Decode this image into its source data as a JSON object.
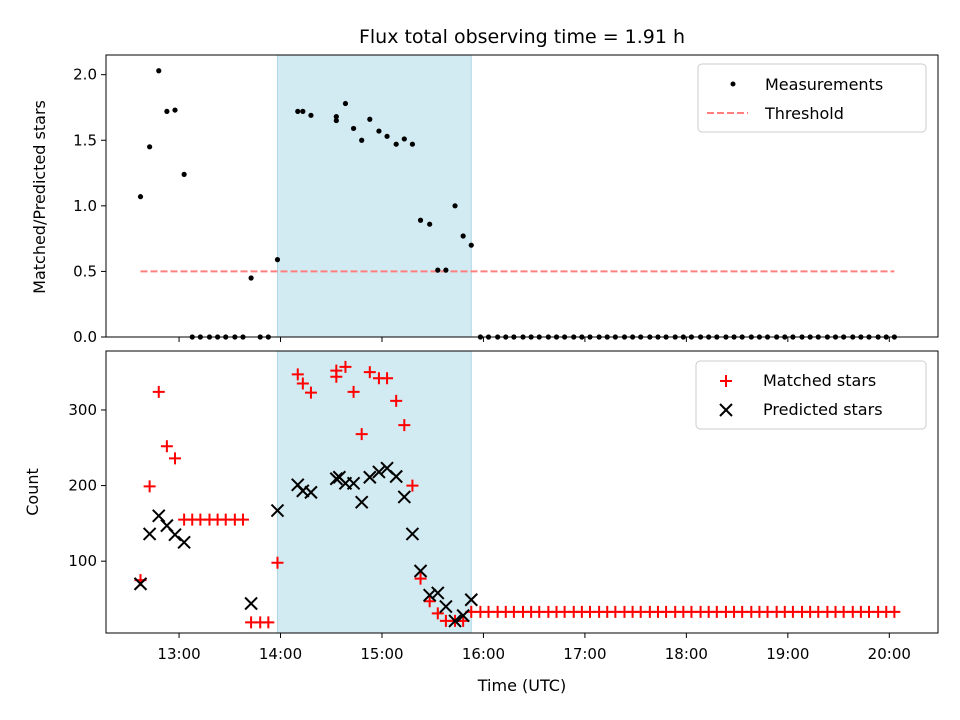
{
  "title": "Flux total observing time = 1.91 h",
  "colors": {
    "measurement": "#000000",
    "threshold": "#ff7f7f",
    "matched": "#ff0000",
    "predicted": "#000000",
    "span": "#add8e6"
  },
  "chart_data": [
    {
      "type": "scatter",
      "ylabel": "Matched/Predicted stars",
      "xlabel": "",
      "ylim": [
        0,
        2.15
      ],
      "yticks": [
        0.0,
        0.5,
        1.0,
        1.5,
        2.0
      ],
      "ytick_labels": [
        "0.0",
        "0.5",
        "1.0",
        "1.5",
        "2.0"
      ],
      "xticks_shown": false,
      "legend": {
        "placement": "top-right",
        "entries": [
          "Measurements",
          "Threshold"
        ]
      },
      "observing_span_hours": [
        13.97,
        15.88
      ],
      "threshold": {
        "value": 0.5,
        "x_start": 12.62,
        "x_end": 20.05
      },
      "series": [
        {
          "name": "Measurements",
          "x": [
            12.62,
            12.71,
            12.8,
            12.88,
            12.96,
            13.05,
            13.13,
            13.21,
            13.3,
            13.38,
            13.46,
            13.55,
            13.63,
            13.71,
            13.8,
            13.88,
            13.97,
            14.05,
            14.17,
            14.22,
            14.3,
            14.38,
            14.55,
            14.55,
            14.64,
            14.72,
            14.8,
            14.88,
            14.97,
            15.05,
            15.14,
            15.22,
            15.3,
            15.38,
            15.47,
            15.55,
            15.63,
            15.72,
            15.8,
            15.88,
            15.97,
            16.05,
            16.14,
            16.22,
            16.3,
            16.39,
            16.47,
            16.55,
            16.64,
            16.72,
            16.8,
            16.89,
            16.97,
            17.05,
            17.14,
            17.22,
            17.3,
            17.39,
            17.47,
            17.55,
            17.64,
            17.72,
            17.8,
            17.89,
            17.97,
            18.05,
            18.14,
            18.22,
            18.3,
            18.39,
            18.47,
            18.55,
            18.64,
            18.72,
            18.8,
            18.89,
            18.97,
            19.05,
            19.14,
            19.22,
            19.3,
            19.39,
            19.47,
            19.55,
            19.64,
            19.72,
            19.8,
            19.89,
            19.97,
            20.05
          ],
          "y": [
            1.07,
            1.45,
            2.03,
            1.72,
            1.73,
            1.24,
            0,
            0,
            0,
            0,
            0,
            0,
            0,
            0.45,
            0,
            0,
            0.59,
            null,
            1.72,
            1.72,
            1.69,
            null,
            1.68,
            1.65,
            1.78,
            1.59,
            1.5,
            1.66,
            1.57,
            1.53,
            1.47,
            1.51,
            1.47,
            0.89,
            0.86,
            0.51,
            0.51,
            1.0,
            0.77,
            0.7,
            0,
            0,
            0,
            0,
            0,
            0,
            0,
            0,
            0,
            0,
            0,
            0,
            0,
            0,
            0,
            0,
            0,
            0,
            0,
            0,
            0,
            0,
            0,
            0,
            0,
            0,
            0,
            0,
            0,
            0,
            0,
            0,
            0,
            0,
            0,
            0,
            0,
            0,
            0,
            0,
            0,
            0,
            0,
            0,
            0,
            0,
            0,
            0,
            0,
            0
          ]
        },
        {
          "name": "Threshold",
          "x": [
            12.62,
            20.05
          ],
          "y": [
            0.5,
            0.5
          ]
        }
      ]
    },
    {
      "type": "scatter",
      "ylabel": "Count",
      "xlabel": "Time (UTC)",
      "ylim": [
        5,
        378
      ],
      "yticks": [
        100,
        200,
        300
      ],
      "ytick_labels": [
        "100",
        "200",
        "300"
      ],
      "xlim_hours": [
        12.28,
        20.48
      ],
      "xticks_hours": [
        13,
        14,
        15,
        16,
        17,
        18,
        19,
        20
      ],
      "xtick_labels": [
        "13:00",
        "14:00",
        "15:00",
        "16:00",
        "17:00",
        "18:00",
        "19:00",
        "20:00"
      ],
      "legend": {
        "placement": "top-right",
        "entries": [
          "Matched stars",
          "Predicted stars"
        ]
      },
      "observing_span_hours": [
        13.97,
        15.88
      ],
      "series": [
        {
          "name": "Matched stars",
          "x": [
            12.62,
            12.71,
            12.8,
            12.88,
            12.96,
            13.05,
            13.13,
            13.21,
            13.3,
            13.38,
            13.46,
            13.55,
            13.63,
            13.71,
            13.8,
            13.88,
            13.97,
            14.17,
            14.22,
            14.3,
            14.55,
            14.55,
            14.64,
            14.72,
            14.8,
            14.88,
            14.97,
            15.05,
            15.14,
            15.22,
            15.3,
            15.38,
            15.47,
            15.55,
            15.63,
            15.72,
            15.8,
            15.88,
            15.97,
            16.05,
            16.14,
            16.22,
            16.3,
            16.39,
            16.47,
            16.55,
            16.64,
            16.72,
            16.8,
            16.89,
            16.97,
            17.05,
            17.14,
            17.22,
            17.3,
            17.39,
            17.47,
            17.55,
            17.64,
            17.72,
            17.8,
            17.89,
            17.97,
            18.05,
            18.14,
            18.22,
            18.3,
            18.39,
            18.47,
            18.55,
            18.64,
            18.72,
            18.8,
            18.89,
            18.97,
            19.05,
            19.14,
            19.22,
            19.3,
            19.39,
            19.47,
            19.55,
            19.64,
            19.72,
            19.8,
            19.89,
            19.97,
            20.05
          ],
          "y": [
            75,
            199,
            324,
            252,
            236,
            155,
            155,
            155,
            155,
            155,
            155,
            155,
            155,
            19,
            19,
            19,
            98,
            347,
            335,
            323,
            352,
            344,
            357,
            324,
            268,
            350,
            342,
            342,
            312,
            280,
            200,
            77,
            47,
            31,
            21,
            21,
            21,
            33,
            33,
            33,
            33,
            33,
            33,
            33,
            33,
            33,
            33,
            33,
            33,
            33,
            33,
            33,
            33,
            33,
            33,
            33,
            33,
            33,
            33,
            33,
            33,
            33,
            33,
            33,
            33,
            33,
            33,
            33,
            33,
            33,
            33,
            33,
            33,
            33,
            33,
            33,
            33,
            33,
            33,
            33,
            33,
            33,
            33,
            33,
            33,
            33,
            33,
            33
          ]
        },
        {
          "name": "Predicted stars",
          "x": [
            12.62,
            12.71,
            12.8,
            12.88,
            12.96,
            13.05,
            13.71,
            13.97,
            14.17,
            14.22,
            14.3,
            14.55,
            14.58,
            14.64,
            14.72,
            14.8,
            14.88,
            14.97,
            15.05,
            15.14,
            15.22,
            15.3,
            15.38,
            15.47,
            15.55,
            15.63,
            15.72,
            15.8,
            15.88
          ],
          "y": [
            70,
            136,
            160,
            147,
            135,
            125,
            44,
            167,
            201,
            193,
            191,
            209,
            211,
            203,
            203,
            178,
            211,
            218,
            223,
            212,
            185,
            136,
            87,
            55,
            58,
            40,
            21,
            28,
            49
          ]
        }
      ]
    }
  ]
}
